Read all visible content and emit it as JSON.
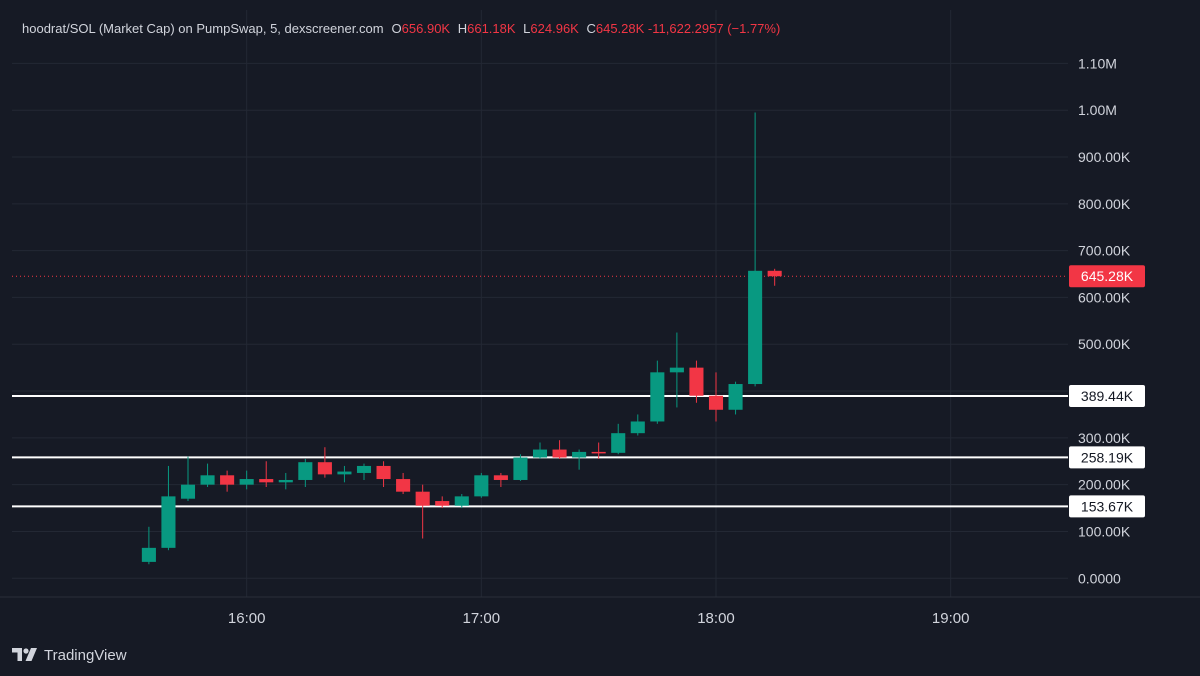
{
  "legend": {
    "symbol": "hoodrat/SOL (Market Cap) on PumpSwap, 5, dexscreener.com",
    "o_label": "O",
    "o_value": "656.90K",
    "h_label": "H",
    "h_value": "661.18K",
    "l_label": "L",
    "l_value": "624.96K",
    "c_label": "C",
    "c_value": "645.28K",
    "change": "-11,622.2957 (−1.77%)"
  },
  "branding": {
    "logo_icon": "tradingview-logo-icon",
    "name": "TradingView"
  },
  "colors": {
    "background": "#161a25",
    "grid": "#232834",
    "text": "#d1d4dc",
    "up": "#089981",
    "down": "#f23645",
    "level_line": "#ffffff"
  },
  "chart_data": {
    "type": "candlestick",
    "title": "hoodrat/SOL (Market Cap) on PumpSwap, 5, dexscreener.com",
    "x_type": "time",
    "x_ticks": [
      "16:00",
      "17:00",
      "18:00",
      "19:00"
    ],
    "x_range": [
      "15:00",
      "19:30"
    ],
    "y_ticks": [
      "1.10M",
      "1.00M",
      "900.00K",
      "800.00K",
      "700.00K",
      "600.00K",
      "500.00K",
      "400.00K",
      "300.00K",
      "200.00K",
      "100.00K",
      "0.0000"
    ],
    "y_tick_values": [
      1100000,
      1000000,
      900000,
      800000,
      700000,
      600000,
      500000,
      400000,
      300000,
      200000,
      100000,
      0
    ],
    "ylim": [
      -40000,
      1150000
    ],
    "grid": true,
    "current_price": {
      "value": 645280,
      "label": "645.28K"
    },
    "horizontal_levels": [
      {
        "value": 389440,
        "label": "389.44K"
      },
      {
        "value": 258190,
        "label": "258.19K"
      },
      {
        "value": 153670,
        "label": "153.67K"
      }
    ],
    "candles": [
      {
        "t": "15:35",
        "o": 35000,
        "h": 110000,
        "l": 30000,
        "c": 65000
      },
      {
        "t": "15:40",
        "o": 65000,
        "h": 240000,
        "l": 60000,
        "c": 175000
      },
      {
        "t": "15:45",
        "o": 170000,
        "h": 260000,
        "l": 165000,
        "c": 200000
      },
      {
        "t": "15:50",
        "o": 200000,
        "h": 245000,
        "l": 195000,
        "c": 220000
      },
      {
        "t": "15:55",
        "o": 220000,
        "h": 230000,
        "l": 185000,
        "c": 200000
      },
      {
        "t": "16:00",
        "o": 200000,
        "h": 230000,
        "l": 190000,
        "c": 212000
      },
      {
        "t": "16:05",
        "o": 212000,
        "h": 250000,
        "l": 195000,
        "c": 205000
      },
      {
        "t": "16:10",
        "o": 205000,
        "h": 225000,
        "l": 190000,
        "c": 210000
      },
      {
        "t": "16:15",
        "o": 210000,
        "h": 255000,
        "l": 195000,
        "c": 248000
      },
      {
        "t": "16:20",
        "o": 248000,
        "h": 280000,
        "l": 215000,
        "c": 222000
      },
      {
        "t": "16:25",
        "o": 222000,
        "h": 240000,
        "l": 205000,
        "c": 228000
      },
      {
        "t": "16:30",
        "o": 225000,
        "h": 245000,
        "l": 210000,
        "c": 240000
      },
      {
        "t": "16:35",
        "o": 240000,
        "h": 250000,
        "l": 195000,
        "c": 212000
      },
      {
        "t": "16:40",
        "o": 212000,
        "h": 225000,
        "l": 180000,
        "c": 185000
      },
      {
        "t": "16:45",
        "o": 185000,
        "h": 200000,
        "l": 85000,
        "c": 155000
      },
      {
        "t": "16:50",
        "o": 165000,
        "h": 175000,
        "l": 150000,
        "c": 155000
      },
      {
        "t": "16:55",
        "o": 155000,
        "h": 180000,
        "l": 150000,
        "c": 175000
      },
      {
        "t": "17:00",
        "o": 175000,
        "h": 225000,
        "l": 172000,
        "c": 220000
      },
      {
        "t": "17:05",
        "o": 220000,
        "h": 225000,
        "l": 195000,
        "c": 210000
      },
      {
        "t": "17:10",
        "o": 210000,
        "h": 265000,
        "l": 208000,
        "c": 258000
      },
      {
        "t": "17:15",
        "o": 258000,
        "h": 290000,
        "l": 255000,
        "c": 275000
      },
      {
        "t": "17:20",
        "o": 275000,
        "h": 295000,
        "l": 255000,
        "c": 258000
      },
      {
        "t": "17:25",
        "o": 258000,
        "h": 275000,
        "l": 232000,
        "c": 270000
      },
      {
        "t": "17:30",
        "o": 270000,
        "h": 290000,
        "l": 255000,
        "c": 268000
      },
      {
        "t": "17:35",
        "o": 268000,
        "h": 330000,
        "l": 265000,
        "c": 310000
      },
      {
        "t": "17:40",
        "o": 310000,
        "h": 350000,
        "l": 305000,
        "c": 335000
      },
      {
        "t": "17:45",
        "o": 335000,
        "h": 465000,
        "l": 330000,
        "c": 440000
      },
      {
        "t": "17:50",
        "o": 440000,
        "h": 525000,
        "l": 365000,
        "c": 450000
      },
      {
        "t": "17:55",
        "o": 450000,
        "h": 465000,
        "l": 375000,
        "c": 390000
      },
      {
        "t": "18:00",
        "o": 390000,
        "h": 440000,
        "l": 335000,
        "c": 360000
      },
      {
        "t": "18:05",
        "o": 360000,
        "h": 420000,
        "l": 350000,
        "c": 415000
      },
      {
        "t": "18:10",
        "o": 415000,
        "h": 995000,
        "l": 410000,
        "c": 656900
      },
      {
        "t": "18:15",
        "o": 656900,
        "h": 661180,
        "l": 624960,
        "c": 645280
      }
    ]
  }
}
